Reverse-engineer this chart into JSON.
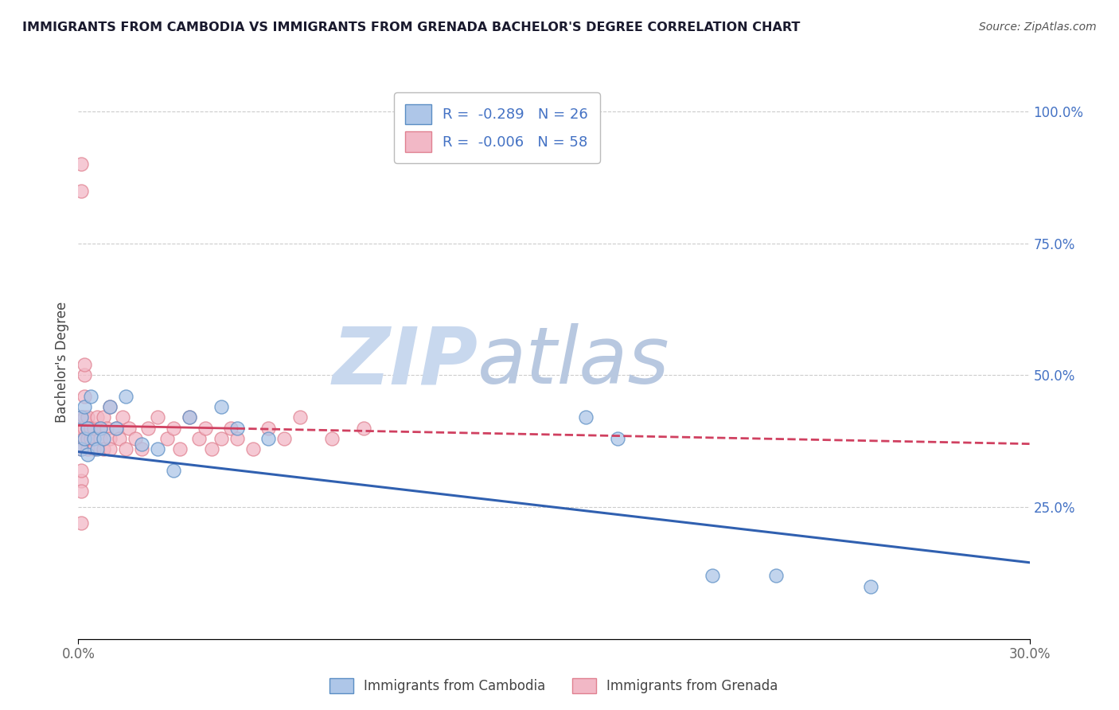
{
  "title": "IMMIGRANTS FROM CAMBODIA VS IMMIGRANTS FROM GRENADA BACHELOR'S DEGREE CORRELATION CHART",
  "source": "Source: ZipAtlas.com",
  "ylabel": "Bachelor's Degree",
  "xlim": [
    0.0,
    0.3
  ],
  "ylim": [
    0.0,
    1.05
  ],
  "xtick_labels": [
    "0.0%",
    "30.0%"
  ],
  "ytick_right_labels": [
    "25.0%",
    "50.0%",
    "75.0%",
    "100.0%"
  ],
  "legend_r1": "R =  -0.289   N = 26",
  "legend_r2": "R =  -0.006   N = 58",
  "legend_label1": "Immigrants from Cambodia",
  "legend_label2": "Immigrants from Grenada",
  "color_cambodia_face": "#aec6e8",
  "color_cambodia_edge": "#5b8ec4",
  "color_grenada_face": "#f2b8c6",
  "color_grenada_edge": "#e08090",
  "color_line_cambodia": "#3060b0",
  "color_line_grenada": "#d04060",
  "color_axis_right": "#4472c4",
  "watermark_zip": "ZIP",
  "watermark_atlas": "atlas",
  "watermark_color_zip": "#c8d8ee",
  "watermark_color_atlas": "#b8c8e0",
  "background_color": "#ffffff",
  "grid_color": "#cccccc",
  "title_color": "#1a1a2e",
  "source_color": "#555555",
  "cambodia_x": [
    0.001,
    0.001,
    0.002,
    0.002,
    0.003,
    0.003,
    0.004,
    0.005,
    0.006,
    0.007,
    0.008,
    0.01,
    0.012,
    0.015,
    0.02,
    0.025,
    0.03,
    0.035,
    0.045,
    0.05,
    0.06,
    0.16,
    0.17,
    0.2,
    0.22,
    0.25
  ],
  "cambodia_y": [
    0.36,
    0.42,
    0.38,
    0.44,
    0.4,
    0.35,
    0.46,
    0.38,
    0.36,
    0.4,
    0.38,
    0.44,
    0.4,
    0.46,
    0.37,
    0.36,
    0.32,
    0.42,
    0.44,
    0.4,
    0.38,
    0.42,
    0.38,
    0.12,
    0.12,
    0.1
  ],
  "grenada_x": [
    0.001,
    0.001,
    0.001,
    0.001,
    0.001,
    0.001,
    0.001,
    0.001,
    0.001,
    0.001,
    0.002,
    0.002,
    0.002,
    0.002,
    0.002,
    0.002,
    0.003,
    0.003,
    0.003,
    0.003,
    0.004,
    0.004,
    0.005,
    0.005,
    0.006,
    0.007,
    0.007,
    0.008,
    0.008,
    0.009,
    0.01,
    0.01,
    0.01,
    0.012,
    0.013,
    0.014,
    0.015,
    0.016,
    0.018,
    0.02,
    0.022,
    0.025,
    0.028,
    0.03,
    0.032,
    0.035,
    0.038,
    0.04,
    0.042,
    0.045,
    0.048,
    0.05,
    0.055,
    0.06,
    0.065,
    0.07,
    0.08,
    0.09
  ],
  "grenada_y": [
    0.85,
    0.9,
    0.38,
    0.42,
    0.3,
    0.28,
    0.22,
    0.32,
    0.36,
    0.4,
    0.46,
    0.5,
    0.52,
    0.38,
    0.4,
    0.42,
    0.4,
    0.42,
    0.36,
    0.38,
    0.4,
    0.38,
    0.36,
    0.4,
    0.42,
    0.4,
    0.38,
    0.36,
    0.42,
    0.4,
    0.44,
    0.38,
    0.36,
    0.4,
    0.38,
    0.42,
    0.36,
    0.4,
    0.38,
    0.36,
    0.4,
    0.42,
    0.38,
    0.4,
    0.36,
    0.42,
    0.38,
    0.4,
    0.36,
    0.38,
    0.4,
    0.38,
    0.36,
    0.4,
    0.38,
    0.42,
    0.38,
    0.4
  ],
  "trend_cambodia_y0": 0.355,
  "trend_cambodia_y1": 0.145,
  "trend_grenada_y0": 0.405,
  "trend_grenada_y1": 0.37
}
